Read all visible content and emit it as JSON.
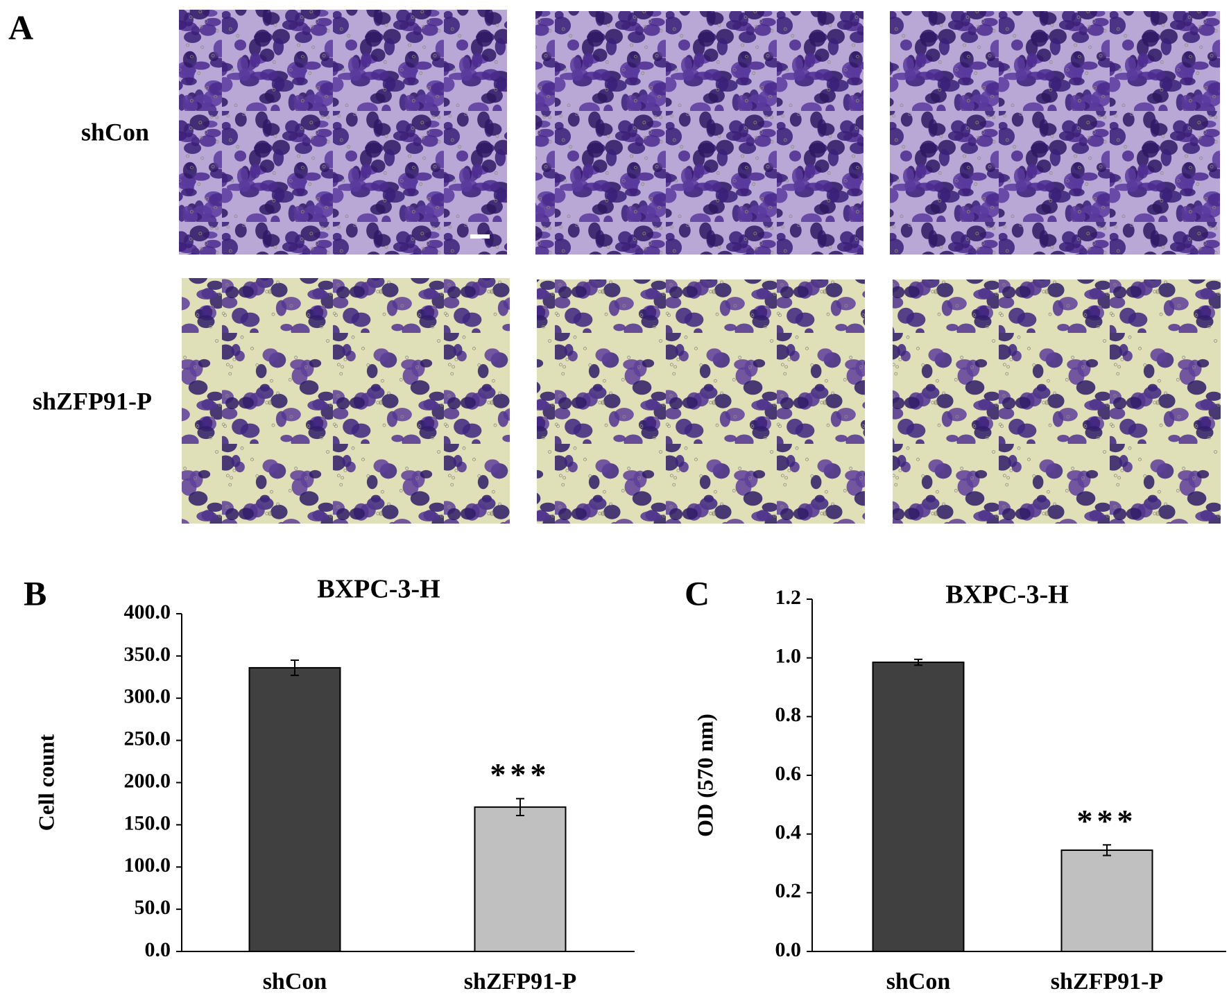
{
  "panel_a": {
    "label": "A",
    "rows": [
      "shCon",
      "shZFP91-P"
    ]
  },
  "chart_data": [
    {
      "type": "bar",
      "panel": "B",
      "title": "BXPC-3-H",
      "y_label": "Cell count",
      "categories": [
        "shCon",
        "shZFP91-P"
      ],
      "values": [
        336,
        171
      ],
      "errors": [
        9,
        10
      ],
      "significance": [
        null,
        "***"
      ],
      "colors": [
        "#404040",
        "#c0c0c0"
      ],
      "ylim": [
        0,
        400
      ],
      "yticks": [
        {
          "value": 0,
          "label": "0.0"
        },
        {
          "value": 50,
          "label": "50.0"
        },
        {
          "value": 100,
          "label": "100.0"
        },
        {
          "value": 150,
          "label": "150.0"
        },
        {
          "value": 200,
          "label": "200.0"
        },
        {
          "value": 250,
          "label": "250.0"
        },
        {
          "value": 300,
          "label": "300.0"
        },
        {
          "value": 350,
          "label": "350.0"
        },
        {
          "value": 400,
          "label": "400.0"
        }
      ]
    },
    {
      "type": "bar",
      "panel": "C",
      "title": "BXPC-3-H",
      "y_label": "OD (570 nm)",
      "categories": [
        "shCon",
        "shZFP91-P"
      ],
      "values": [
        0.985,
        0.345
      ],
      "errors": [
        0.01,
        0.018
      ],
      "significance": [
        null,
        "***"
      ],
      "colors": [
        "#404040",
        "#c0c0c0"
      ],
      "ylim": [
        0,
        1.2
      ],
      "yticks": [
        {
          "value": 0,
          "label": "0.0"
        },
        0.2,
        0.4,
        0.6,
        0.8,
        {
          "value": 1,
          "label": "1.0"
        },
        1.2
      ]
    }
  ]
}
